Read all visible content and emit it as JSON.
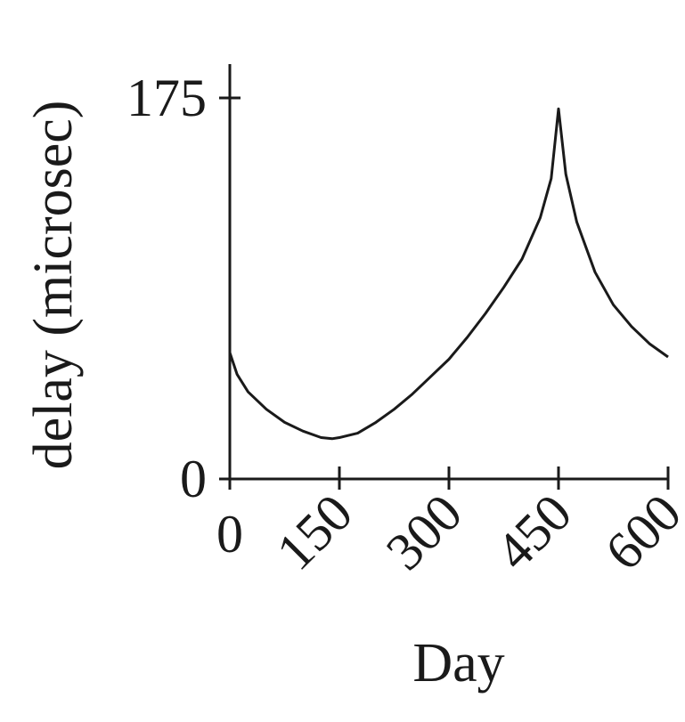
{
  "chart_data": {
    "type": "line",
    "xlabel": "Day",
    "ylabel": "delay (microsec)",
    "xlim": [
      0,
      600
    ],
    "ylim": [
      0,
      175
    ],
    "x_ticks": [
      "0",
      "150",
      "300",
      "450",
      "600"
    ],
    "y_ticks": [
      "0",
      "175"
    ],
    "grid": false,
    "series": [
      {
        "x": [
          0,
          10,
          25,
          50,
          75,
          100,
          125,
          140,
          150,
          175,
          200,
          225,
          250,
          275,
          300,
          325,
          350,
          375,
          400,
          425,
          440,
          450,
          460,
          475,
          500,
          525,
          550,
          575,
          600
        ],
        "y": [
          58,
          48,
          40,
          32,
          26,
          22,
          19,
          18.5,
          19,
          21,
          26,
          32,
          39,
          47,
          55,
          65,
          76,
          88,
          101,
          120,
          138,
          170,
          140,
          118,
          95,
          80,
          70,
          62,
          56
        ]
      }
    ]
  }
}
